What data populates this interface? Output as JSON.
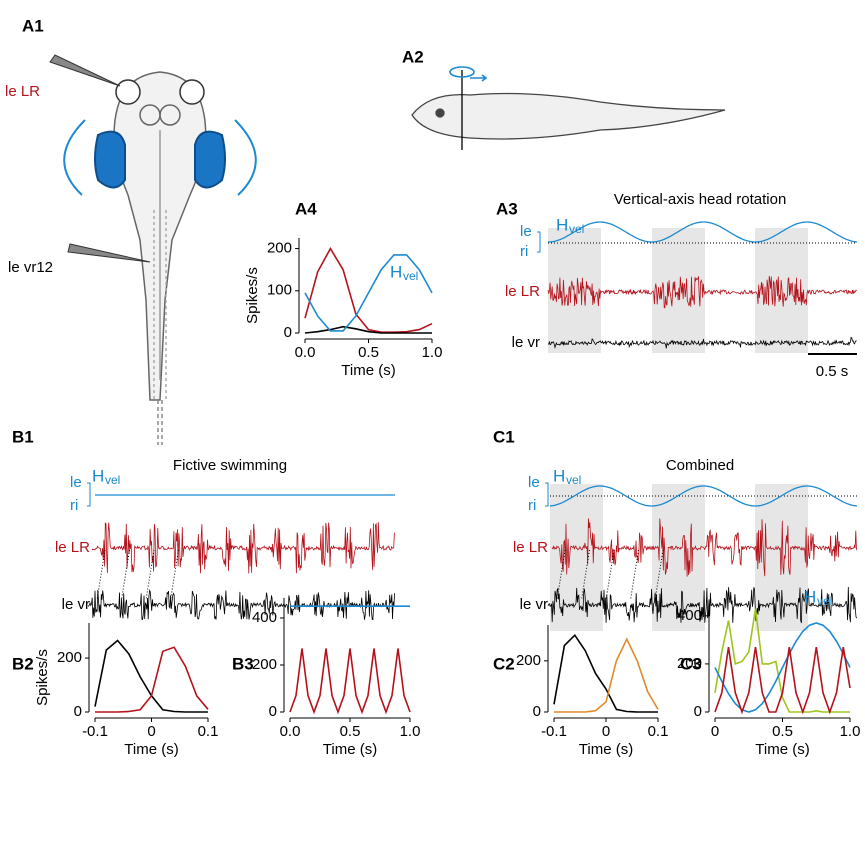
{
  "labels": [
    "A1",
    "A2",
    "A3",
    "A4",
    "B1",
    "B2",
    "B3",
    "C1",
    "C2",
    "C3"
  ],
  "a1": {
    "le_lr": "le LR",
    "le_vr12": "le vr12"
  },
  "a3": {
    "title": "Vertical-axis head rotation",
    "le": "le",
    "ri": "ri",
    "h": "H",
    "vel": "vel",
    "lr": "le LR",
    "vr": "le vr",
    "scale": "0.5 s"
  },
  "b1": {
    "title": "Fictive swimming",
    "le": "le",
    "ri": "ri",
    "h": "H",
    "vel": "vel",
    "lr": "le LR",
    "vr": "le vr"
  },
  "c1": {
    "title": "Combined",
    "le": "le",
    "ri": "ri",
    "h": "H",
    "vel": "vel",
    "lr": "le LR",
    "vr": "le vr"
  },
  "chart_data": [
    {
      "type": "line",
      "ylabel": "Spikes/s",
      "xlabel": "Time (s)",
      "annotation": "H",
      "annotation_sub": "vel",
      "x": [
        0,
        0.1,
        0.2,
        0.3,
        0.4,
        0.5,
        0.6,
        0.7,
        0.8,
        0.9,
        1
      ],
      "series": [
        {
          "color": "#b5121b",
          "values": [
            35,
            145,
            200,
            150,
            45,
            8,
            2,
            2,
            3,
            8,
            22
          ]
        },
        {
          "color": "#000000",
          "values": [
            0,
            3,
            8,
            15,
            10,
            3,
            0,
            0,
            0,
            0,
            0
          ]
        },
        {
          "color": "#1b8ad0",
          "values": [
            95,
            40,
            5,
            5,
            40,
            95,
            150,
            185,
            185,
            150,
            95
          ]
        }
      ],
      "xlim": [
        0,
        1
      ],
      "xticks": [
        {
          "value": 0,
          "label": "0.0"
        },
        0.5,
        {
          "value": 1,
          "label": "1.0"
        }
      ],
      "ylim": [
        0,
        225
      ],
      "yticks": [
        0,
        100,
        200
      ]
    },
    {
      "type": "line",
      "ylabel": "Spikes/s",
      "xlabel": "Time (s)",
      "x": [
        -0.1,
        -0.08,
        -0.06,
        -0.04,
        -0.02,
        0,
        0.02,
        0.04,
        0.06,
        0.08,
        0.1
      ],
      "series": [
        {
          "color": "#000000",
          "values": [
            20,
            230,
            265,
            215,
            130,
            60,
            8,
            2,
            0,
            0,
            0
          ]
        },
        {
          "color": "#b5121b",
          "values": [
            0,
            0,
            0,
            2,
            8,
            60,
            225,
            240,
            170,
            60,
            10
          ]
        }
      ],
      "xlim": [
        -0.1,
        0.1
      ],
      "xticks": [
        -0.1,
        0,
        0.1
      ],
      "ylim": [
        0,
        330
      ],
      "yticks": [
        0,
        200
      ]
    },
    {
      "type": "line",
      "xlabel": "Time (s)",
      "annotation": "H",
      "annotation_sub": "vel",
      "x": [
        0,
        0.05,
        0.1,
        0.15,
        0.2,
        0.25,
        0.3,
        0.35,
        0.4,
        0.45,
        0.5,
        0.55,
        0.6,
        0.65,
        0.7,
        0.75,
        0.8,
        0.85,
        0.9,
        0.95,
        1
      ],
      "series": [
        {
          "color": "#1b8ad0",
          "values": [
            450,
            450,
            450,
            450,
            450,
            450,
            450,
            450,
            450,
            450,
            450,
            450,
            450,
            450,
            450,
            450,
            450,
            450,
            450,
            450,
            450
          ]
        },
        {
          "color": "#b5121b",
          "values": [
            0,
            70,
            270,
            70,
            0,
            70,
            270,
            70,
            0,
            70,
            270,
            70,
            0,
            70,
            270,
            70,
            0,
            70,
            270,
            70,
            0
          ]
        }
      ],
      "xlim": [
        0,
        1
      ],
      "xticks": [
        {
          "value": 0,
          "label": "0.0"
        },
        0.5,
        {
          "value": 1,
          "label": "1.0"
        }
      ],
      "ylim": [
        0,
        485
      ],
      "yticks": [
        0,
        200,
        400
      ]
    },
    {
      "type": "line",
      "xlabel": "Time (s)",
      "x": [
        -0.1,
        -0.08,
        -0.06,
        -0.04,
        -0.02,
        0,
        0.02,
        0.04,
        0.06,
        0.08,
        0.1
      ],
      "series": [
        {
          "color": "#000000",
          "values": [
            30,
            260,
            300,
            240,
            150,
            90,
            10,
            2,
            0,
            0,
            0
          ]
        },
        {
          "color": "#e08a2c",
          "values": [
            0,
            0,
            0,
            0,
            5,
            40,
            200,
            285,
            200,
            80,
            10
          ]
        }
      ],
      "xlim": [
        -0.1,
        0.1
      ],
      "xticks": [
        -0.1,
        0,
        0.1
      ],
      "ylim": [
        0,
        340
      ],
      "yticks": [
        0,
        200
      ]
    },
    {
      "type": "line",
      "xlabel": "Time (s)",
      "annotation": "H",
      "annotation_sub": "vel",
      "x": [
        0,
        0.05,
        0.1,
        0.15,
        0.2,
        0.25,
        0.3,
        0.35,
        0.4,
        0.45,
        0.5,
        0.55,
        0.6,
        0.65,
        0.7,
        0.75,
        0.8,
        0.85,
        0.9,
        0.95,
        1
      ],
      "series": [
        {
          "color": "#9ec51e",
          "values": [
            80,
            250,
            380,
            200,
            210,
            250,
            430,
            200,
            200,
            210,
            60,
            0,
            0,
            0,
            0,
            5,
            0,
            0,
            0,
            0,
            0
          ]
        },
        {
          "color": "#1b8ad0",
          "values": [
            185,
            128,
            76,
            35,
            9,
            0,
            9,
            35,
            76,
            128,
            185,
            242,
            294,
            335,
            361,
            370,
            361,
            335,
            294,
            242,
            185
          ]
        },
        {
          "color": "#b5121b",
          "values": [
            0,
            80,
            270,
            80,
            0,
            80,
            270,
            80,
            0,
            0,
            80,
            270,
            80,
            0,
            80,
            270,
            80,
            0,
            80,
            270,
            100
          ]
        }
      ],
      "xlim": [
        0,
        1
      ],
      "xticks": [
        0,
        0.5,
        {
          "value": 1,
          "label": "1.0"
        }
      ],
      "ylim": [
        0,
        445
      ],
      "yticks": [
        0,
        200,
        400
      ]
    }
  ]
}
